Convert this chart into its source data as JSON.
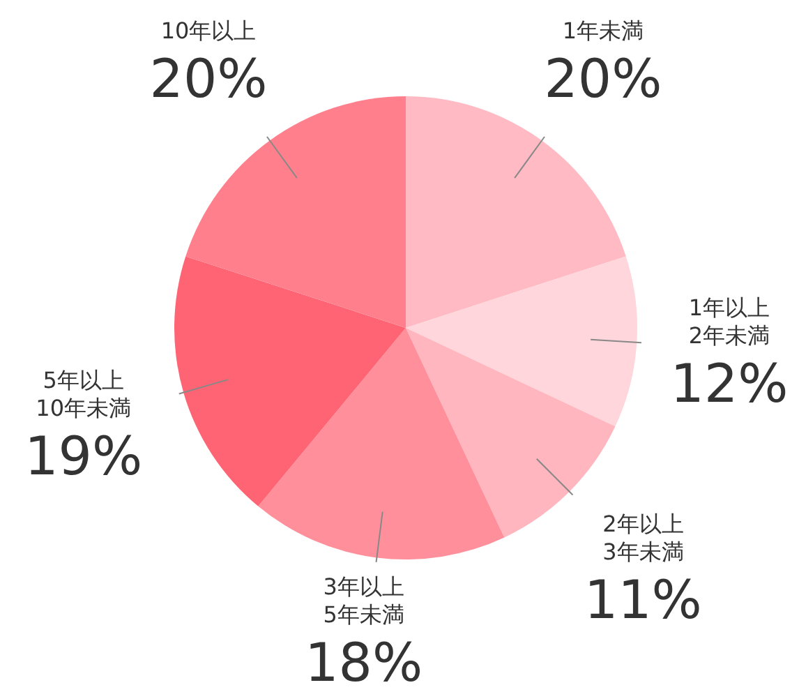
{
  "chart_data": {
    "type": "pie",
    "categories": [
      "1年未満",
      "1年以上\n2年未満",
      "2年以上\n3年未満",
      "3年以上\n5年未満",
      "5年以上\n10年未満",
      "10年以上"
    ],
    "values": [
      20,
      12,
      11,
      18,
      19,
      20
    ],
    "value_labels": [
      "20%",
      "12%",
      "11%",
      "18%",
      "19%",
      "20%"
    ],
    "colors": [
      "#ffbac3",
      "#ffd6db",
      "#ffb6bf",
      "#ff909b",
      "#ff6474",
      "#ff808c"
    ]
  }
}
